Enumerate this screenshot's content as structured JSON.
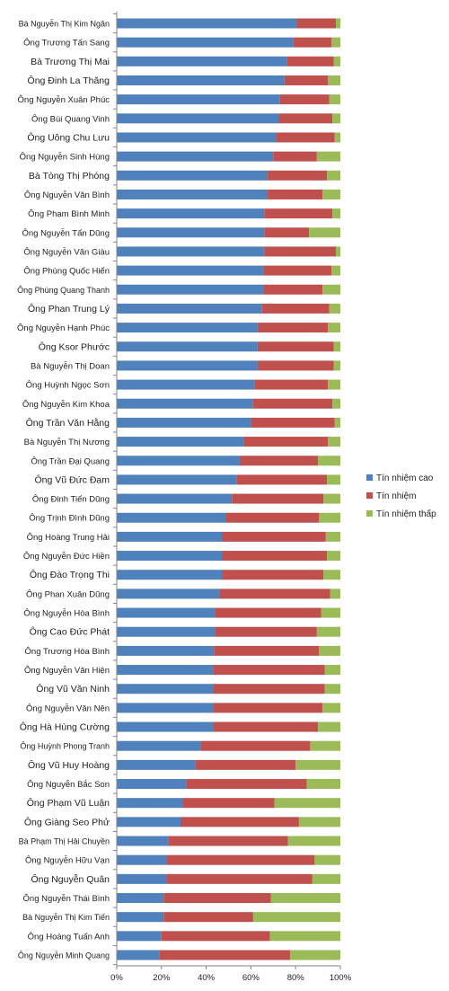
{
  "chart_data": {
    "type": "bar",
    "orientation": "horizontal",
    "stacked": "percent",
    "xlim": [
      0,
      100
    ],
    "x_ticks": [
      "0%",
      "20%",
      "40%",
      "60%",
      "80%",
      "100%"
    ],
    "grid": false,
    "legend_position": "right",
    "categories": [
      "Bà Nguyễn Thị Kim Ngân",
      "Ông Trương Tấn Sang",
      "Bà Trương Thị Mai",
      "Ông Đinh La Thăng",
      "Ông Nguyễn Xuân Phúc",
      "Ông Bùi Quang Vinh",
      "Ông Uông Chu Lưu",
      "Ông Nguyễn Sinh Hùng",
      "Bà Tòng Thị Phóng",
      "Ông Nguyễn Văn Bình",
      "Ông Phạm Bình Minh",
      "Ông Nguyễn Tấn Dũng",
      "Ông Nguyễn Văn Giàu",
      "Ông Phùng Quốc Hiển",
      "Ông Phùng Quang Thanh",
      "Ông Phan Trung Lý",
      "Ông Nguyễn Hạnh Phúc",
      "Ông Ksor Phước",
      "Bà Nguyễn Thị Doan",
      "Ông Huỳnh Ngọc Sơn",
      "Ông Nguyễn Kim Khoa",
      "Ông Trần Văn Hằng",
      "Bà Nguyễn Thị Nương",
      "Ông Trần Đại Quang",
      "Ông Vũ Đức Đam",
      "Ông Đinh Tiến Dũng",
      "Ông Trịnh Đình Dũng",
      "Ông Hoàng Trung Hải",
      "Ông Nguyễn Đức Hiền",
      "Ông Đào Trọng Thi",
      "Ông Phan Xuân Dũng",
      "Ông Nguyễn Hòa Bình",
      "Ông Cao Đức Phát",
      "Ông Trương Hòa Bình",
      "Ông Nguyễn Văn Hiện",
      "Ông Vũ Văn Ninh",
      "Ông Nguyễn Văn Nên",
      "Ông Hà Hùng Cường",
      "Ông Huỳnh Phong Tranh",
      "Ông Vũ Huy Hoàng",
      "Ông Nguyễn Bắc Son",
      "Ông Phạm Vũ Luận",
      "Ông Giàng Seo Phử",
      "Bà Phạm Thị Hải Chuyền",
      "Ông Nguyễn Hữu Vạn",
      "Ông Nguyễn Quân",
      "Ông Nguyễn Thái Bình",
      "Bà Nguyễn Thị Kim Tiến",
      "Ông Hoàng Tuấn Anh",
      "Ông Nguyễn Minh Quang"
    ],
    "series": [
      {
        "name": "Tín nhiệm cao",
        "color": "#4f81bd",
        "values": [
          80.5,
          79,
          76,
          75,
          73,
          72.5,
          71.5,
          70,
          67.5,
          67.5,
          66,
          66,
          66,
          65.5,
          65.5,
          65,
          63,
          63,
          63,
          61.5,
          61,
          60,
          57,
          55,
          53.5,
          51.5,
          49,
          47,
          47,
          47,
          46,
          44,
          44,
          43.5,
          43,
          43,
          43,
          43,
          37.5,
          35,
          31,
          29.5,
          28.5,
          23,
          22.5,
          22.5,
          21,
          21,
          20,
          19
        ]
      },
      {
        "name": "Tín nhiệm",
        "color": "#c0504d",
        "values": [
          17.5,
          17,
          21,
          19.5,
          22,
          24,
          26,
          19.5,
          26.5,
          24.5,
          30.5,
          20,
          32,
          30.5,
          26.5,
          30,
          31.5,
          34,
          34,
          33,
          35.5,
          37.5,
          37.5,
          35,
          40.5,
          41,
          41.5,
          46.5,
          47,
          45.5,
          49.5,
          47.5,
          45.5,
          47,
          50,
          50,
          49,
          47,
          49,
          45,
          54,
          41,
          53,
          53.5,
          66,
          65,
          48,
          40,
          48.5,
          58.5
        ]
      },
      {
        "name": "Tín nhiệm thấp",
        "color": "#9bbb59",
        "values": [
          2,
          4,
          3,
          5.5,
          5,
          3.5,
          2.5,
          10.5,
          6,
          8,
          3.5,
          14,
          2,
          4,
          8,
          5,
          5.5,
          3,
          3,
          5.5,
          3.5,
          2.5,
          5.5,
          10,
          6,
          7.5,
          9.5,
          6.5,
          6,
          7.5,
          4.5,
          8.5,
          10.5,
          9.5,
          7,
          7,
          8,
          10,
          13.5,
          20,
          15,
          29.5,
          18.5,
          23.5,
          11.5,
          12.5,
          31,
          39,
          31.5,
          22.5
        ]
      }
    ]
  }
}
